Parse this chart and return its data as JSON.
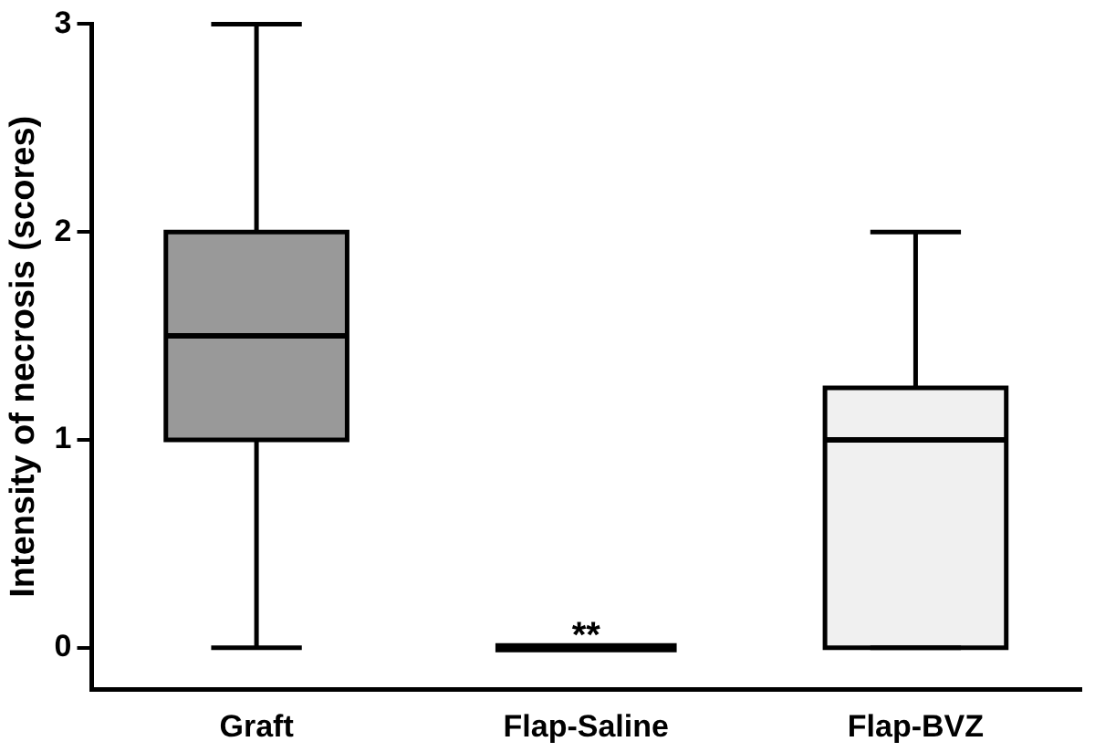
{
  "chart_data": {
    "type": "box",
    "ylabel": "Intensity of necrosis (scores)",
    "categories": [
      "Graft",
      "Flap-Saline",
      "Flap-BVZ"
    ],
    "boxes": [
      {
        "low": 0,
        "q1": 1,
        "median": 1.5,
        "q3": 2,
        "high": 3
      },
      {
        "low": 0,
        "q1": 0,
        "median": 0,
        "q3": 0,
        "high": 0
      },
      {
        "low": 0,
        "q1": 0,
        "median": 1,
        "q3": 1.25,
        "high": 2
      }
    ],
    "colors": [
      "#999999",
      "#000000",
      "#f0f0f0"
    ],
    "ylim": [
      -0.2,
      3
    ],
    "yticks": [
      0,
      1,
      2,
      3
    ],
    "grid": false,
    "annotations": [
      {
        "text": "**",
        "x": "Flap-Saline",
        "y": 0
      }
    ]
  }
}
